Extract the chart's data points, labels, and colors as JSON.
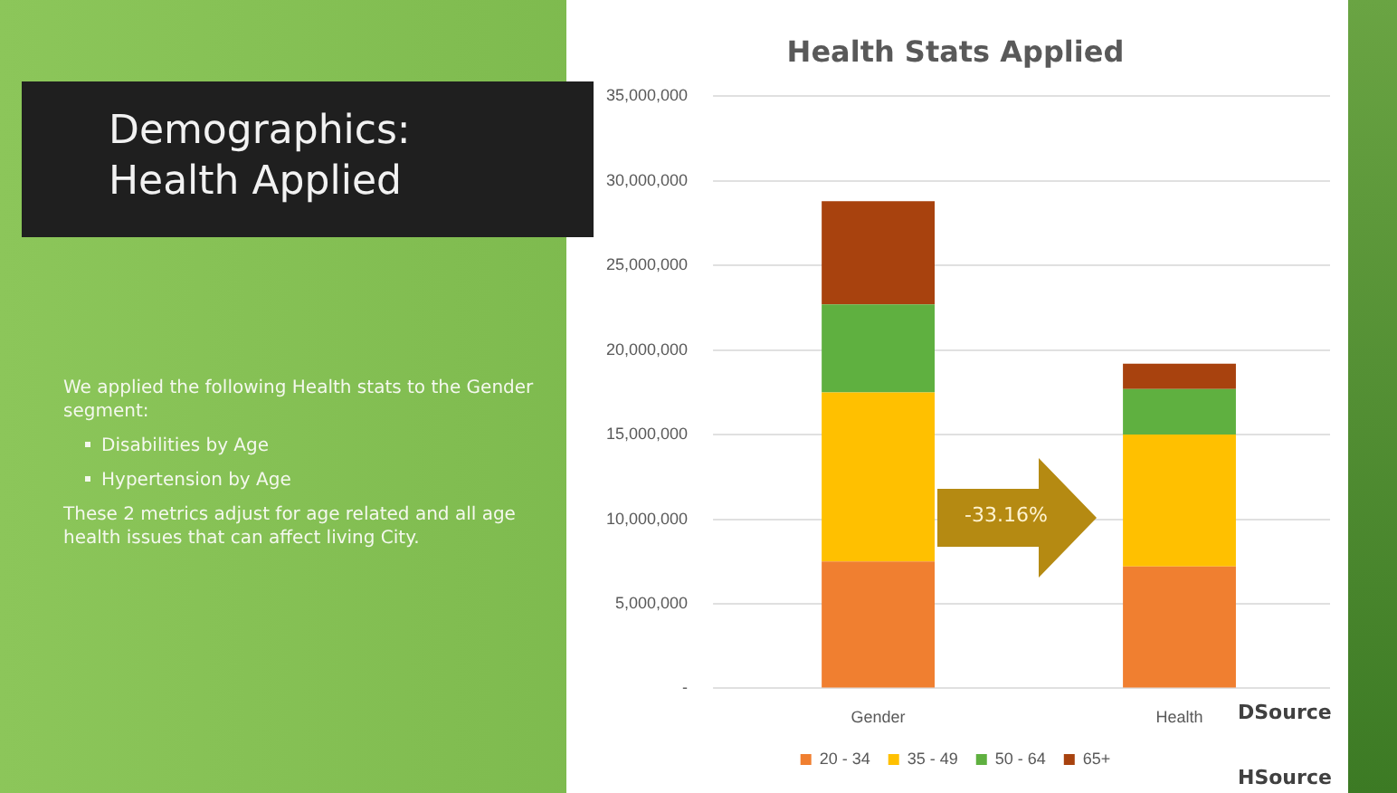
{
  "chart_data": {
    "type": "bar",
    "title": "Health Stats Applied",
    "stacked": true,
    "categories": [
      "Gender",
      "Health"
    ],
    "series": [
      {
        "name": "20 - 34",
        "color": "#f07f30",
        "values": [
          7500000,
          7200000
        ]
      },
      {
        "name": "35 - 49",
        "color": "#ffc000",
        "values": [
          10000000,
          7800000
        ]
      },
      {
        "name": "50 - 64",
        "color": "#5fb040",
        "values": [
          5200000,
          2700000
        ]
      },
      {
        "name": "65+",
        "color": "#a8420e",
        "values": [
          6100000,
          1500000
        ]
      }
    ],
    "ylim": [
      0,
      35000000
    ],
    "yticks": [
      {
        "value": 0,
        "label": "-"
      },
      {
        "value": 5000000,
        "label": "5,000,000"
      },
      {
        "value": 10000000,
        "label": "10,000,000"
      },
      {
        "value": 15000000,
        "label": "15,000,000"
      },
      {
        "value": 20000000,
        "label": "20,000,000"
      },
      {
        "value": 25000000,
        "label": "25,000,000"
      },
      {
        "value": 30000000,
        "label": "30,000,000"
      },
      {
        "value": 35000000,
        "label": "35,000,000"
      }
    ],
    "grid": "y",
    "legend": "bottom",
    "annotations": [
      "Demographics: Health Applied",
      "We applied the following Health stats to the Gender segment:",
      "Disabilities by Age",
      "Hypertension by Age",
      "These 2 metrics adjust for age related and all age health issues that can affect living City.",
      "-33.16%",
      "DSource",
      "HSource"
    ]
  }
}
